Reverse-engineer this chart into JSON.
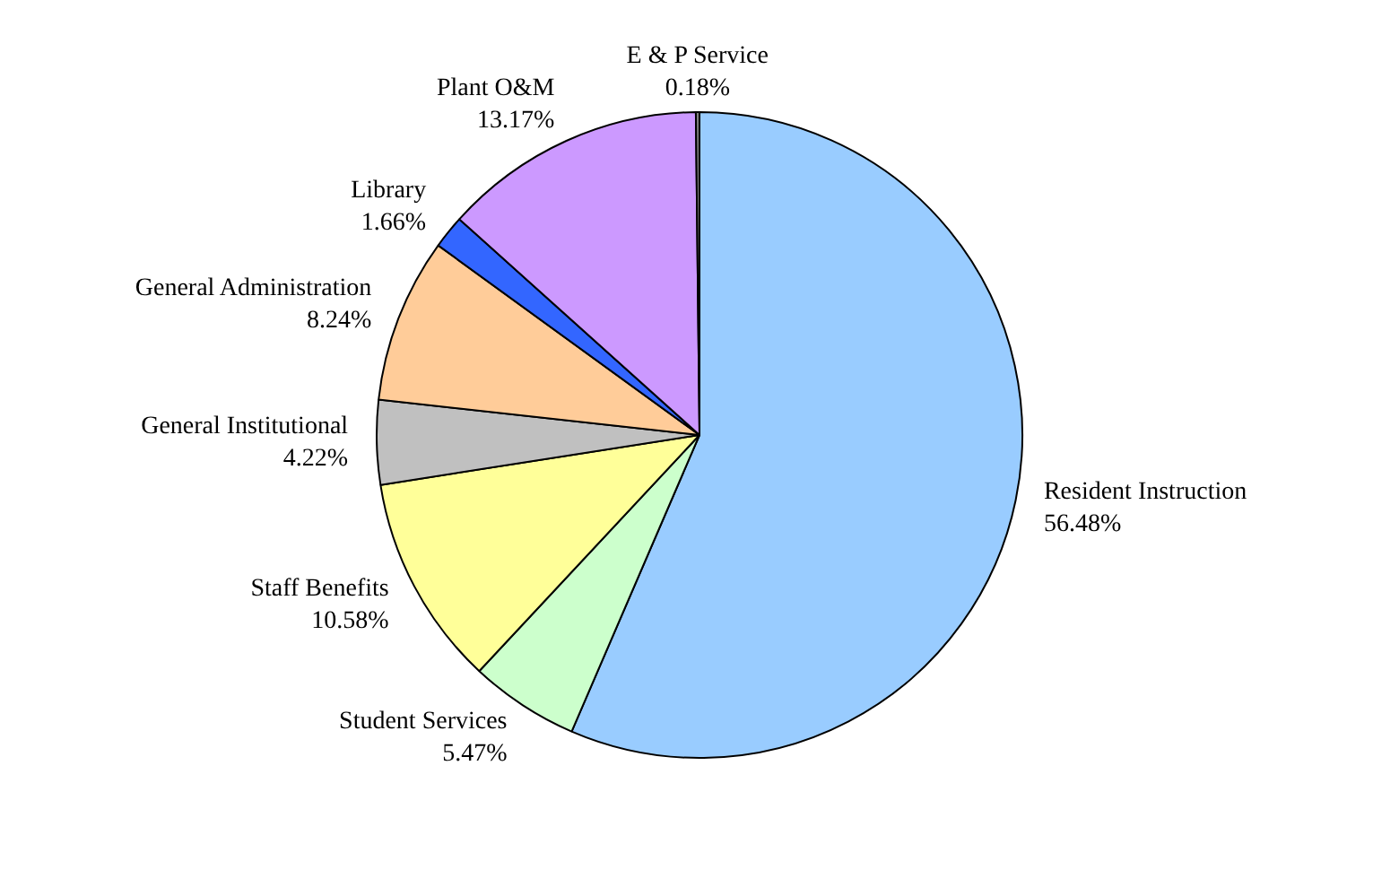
{
  "chart_data": {
    "type": "pie",
    "categories": [
      "Resident Instruction",
      "Student Services",
      "Staff Benefits",
      "General Institutional",
      "General Administration",
      "Library",
      "Plant O&M",
      "E & P Service"
    ],
    "values": [
      56.48,
      5.47,
      10.58,
      4.22,
      8.24,
      1.66,
      13.17,
      0.18
    ],
    "value_labels": [
      "56.48%",
      "5.47%",
      "10.58%",
      "4.22%",
      "8.24%",
      "1.66%",
      "13.17%",
      "0.18%"
    ],
    "colors": [
      "#99ccff",
      "#ccffcc",
      "#ffff99",
      "#c0c0c0",
      "#ffcc99",
      "#3366ff",
      "#cc99ff",
      "#808080"
    ],
    "legend": false
  }
}
